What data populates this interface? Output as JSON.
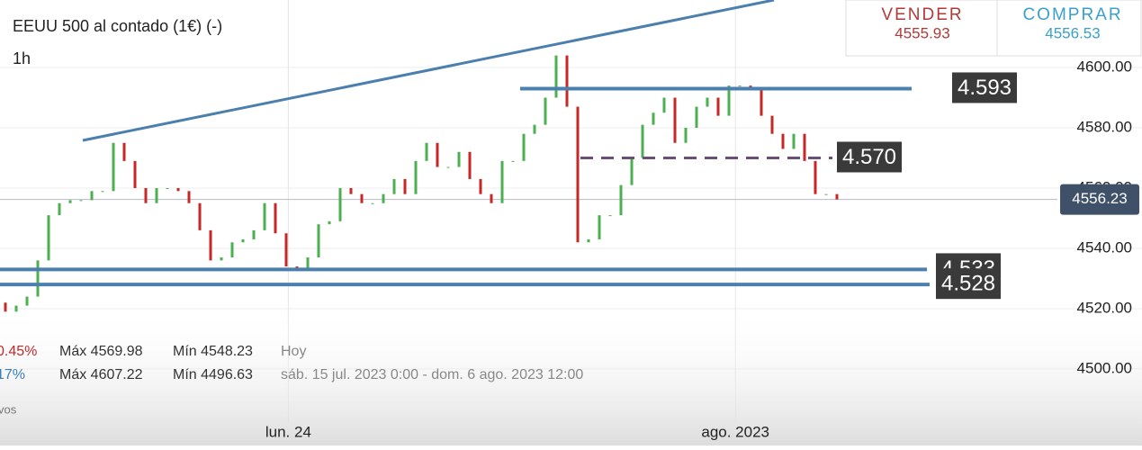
{
  "chart_data": {
    "type": "candlestick",
    "title": "EEUU 500 al contado (1€) (-)",
    "timeframe": "1h",
    "sell_label": "VENDER",
    "sell_price": "4555.93",
    "buy_label": "COMPRAR",
    "buy_price": "4556.53",
    "last_price": 4556.23,
    "up_color": "#4caf50",
    "down_color": "#c62828",
    "open": [
      4522,
      4519,
      4521,
      4524,
      4536,
      4551,
      4555,
      4556,
      4556,
      4559,
      4559,
      4575,
      4569,
      4560,
      4555,
      4560,
      4560,
      4559,
      4555,
      4546,
      4536,
      4537,
      4542,
      4543,
      4546,
      4555,
      4545,
      4534,
      4533,
      4537,
      4548,
      4549,
      4560,
      4558,
      4555,
      4555,
      4558,
      4563,
      4558,
      4569,
      4575,
      4567,
      4567,
      4572,
      4563,
      4558,
      4555,
      4569,
      4569,
      4578,
      4581,
      4590,
      4604,
      4587,
      4542,
      4543,
      4551,
      4551,
      4561,
      4570,
      4581,
      4585,
      4590,
      4575,
      4580,
      4587,
      4590,
      4584,
      4594,
      4594,
      4593,
      4584,
      4578,
      4573,
      4578,
      4569,
      4558,
      4558
    ],
    "close": [
      4519,
      4521,
      4524,
      4536,
      4551,
      4555,
      4556,
      4556,
      4559,
      4559,
      4575,
      4569,
      4560,
      4555,
      4560,
      4560,
      4559,
      4555,
      4546,
      4536,
      4537,
      4542,
      4543,
      4546,
      4555,
      4545,
      4534,
      4533,
      4537,
      4548,
      4549,
      4560,
      4558,
      4555,
      4555,
      4558,
      4563,
      4558,
      4569,
      4575,
      4567,
      4567,
      4572,
      4563,
      4558,
      4555,
      4569,
      4569,
      4578,
      4581,
      4590,
      4604,
      4587,
      4542,
      4543,
      4551,
      4551,
      4561,
      4570,
      4581,
      4585,
      4590,
      4575,
      4580,
      4587,
      4590,
      4584,
      4594,
      4594,
      4593,
      4584,
      4578,
      4573,
      4578,
      4569,
      4558,
      4558,
      4556.23
    ],
    "xlim": [
      -0.5,
      97
    ],
    "xticks": [
      {
        "value": 26.2,
        "label": "lun. 24"
      },
      {
        "value": 67.6,
        "label": "ago. 2023"
      }
    ],
    "ylim": [
      4474.6,
      4622.4
    ],
    "yticks": [
      {
        "value": 4500,
        "label": "4500.00"
      },
      {
        "value": 4520,
        "label": "4520.00"
      },
      {
        "value": 4540,
        "label": "4540.00"
      },
      {
        "value": 4560,
        "label": "4560.00"
      },
      {
        "value": 4580,
        "label": "4580.00"
      },
      {
        "value": 4600,
        "label": "4600.00"
      }
    ],
    "grid": true,
    "levels": [
      {
        "value": 4593,
        "label": "4.593"
      },
      {
        "value": 4570,
        "label": "4.570"
      },
      {
        "value": 4533,
        "label": "4.533"
      },
      {
        "value": 4528,
        "label": "4.528"
      }
    ],
    "stats": [
      [
        "0.45%",
        "Máx 4569.98",
        "Mín 4548.23",
        "Hoy"
      ],
      [
        "17%",
        "Máx 4607.22",
        "Mín 4496.63",
        "sáb. 15 jul. 2023 0:00 - dom. 6 ago. 2023 12:00"
      ]
    ],
    "footer_note": "vos"
  }
}
